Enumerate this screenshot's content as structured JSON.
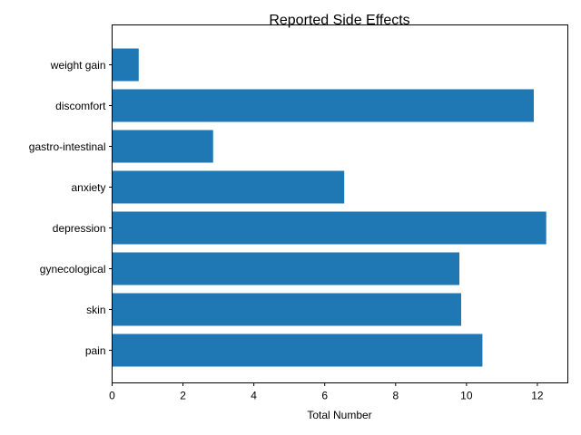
{
  "chart_data": {
    "type": "bar",
    "orientation": "horizontal",
    "title": "Reported Side Effects",
    "xlabel": "Total Number",
    "ylabel": "",
    "categories": [
      "pain",
      "skin",
      "gynecological",
      "depression",
      "anxiety",
      "gastro-intestinal",
      "discomfort",
      "weight gain"
    ],
    "values": [
      10.45,
      9.85,
      9.8,
      12.25,
      6.55,
      2.85,
      11.9,
      0.75
    ],
    "xlim": [
      0,
      12.86
    ],
    "xticks": [
      0,
      2,
      4,
      6,
      8,
      10,
      12
    ],
    "grid": false,
    "legend": "none",
    "bar_color": "#1f77b4"
  }
}
